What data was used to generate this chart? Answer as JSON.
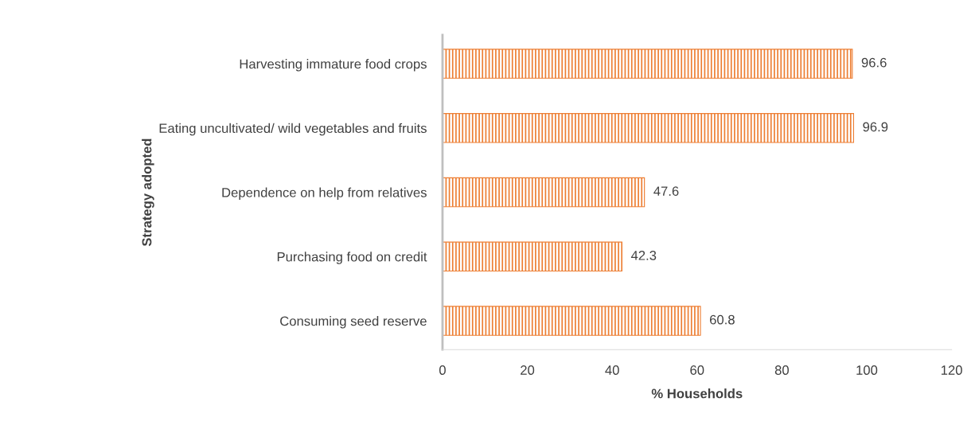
{
  "chart_data": {
    "type": "bar",
    "orientation": "horizontal",
    "ylabel": "Strategy adopted",
    "xlabel": "% Households",
    "categories": [
      "Harvesting immature food crops",
      "Eating uncultivated/ wild vegetables and fruits",
      "Dependence on help from relatives",
      "Purchasing food on credit",
      "Consuming seed reserve"
    ],
    "values": [
      96.6,
      96.9,
      47.6,
      42.3,
      60.8
    ],
    "color": "#ed7d31",
    "xlim": [
      0,
      120
    ],
    "xticks": [
      0,
      20,
      40,
      60,
      80,
      100,
      120
    ],
    "data_labels": true,
    "grid": false
  }
}
